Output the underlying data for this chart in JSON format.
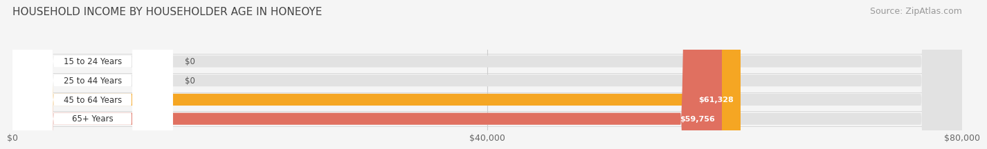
{
  "title": "HOUSEHOLD INCOME BY HOUSEHOLDER AGE IN HONEOYE",
  "source": "Source: ZipAtlas.com",
  "categories": [
    "15 to 24 Years",
    "25 to 44 Years",
    "45 to 64 Years",
    "65+ Years"
  ],
  "values": [
    0,
    0,
    61328,
    59756
  ],
  "bar_colors": [
    "#a0a0cc",
    "#e87a9a",
    "#f5a623",
    "#e07060"
  ],
  "label_colors": [
    "#555555",
    "#555555",
    "#ffffff",
    "#ffffff"
  ],
  "value_labels": [
    "$0",
    "$0",
    "$61,328",
    "$59,756"
  ],
  "xlim": [
    0,
    80000
  ],
  "xticks": [
    0,
    40000,
    80000
  ],
  "xtick_labels": [
    "$0",
    "$40,000",
    "$80,000"
  ],
  "background_color": "#f5f5f5",
  "bar_background_color": "#e2e2e2",
  "title_fontsize": 11,
  "source_fontsize": 9,
  "tick_fontsize": 9,
  "bar_height": 0.62,
  "label_badge_color": "#ffffff",
  "label_text_color": "#333333"
}
